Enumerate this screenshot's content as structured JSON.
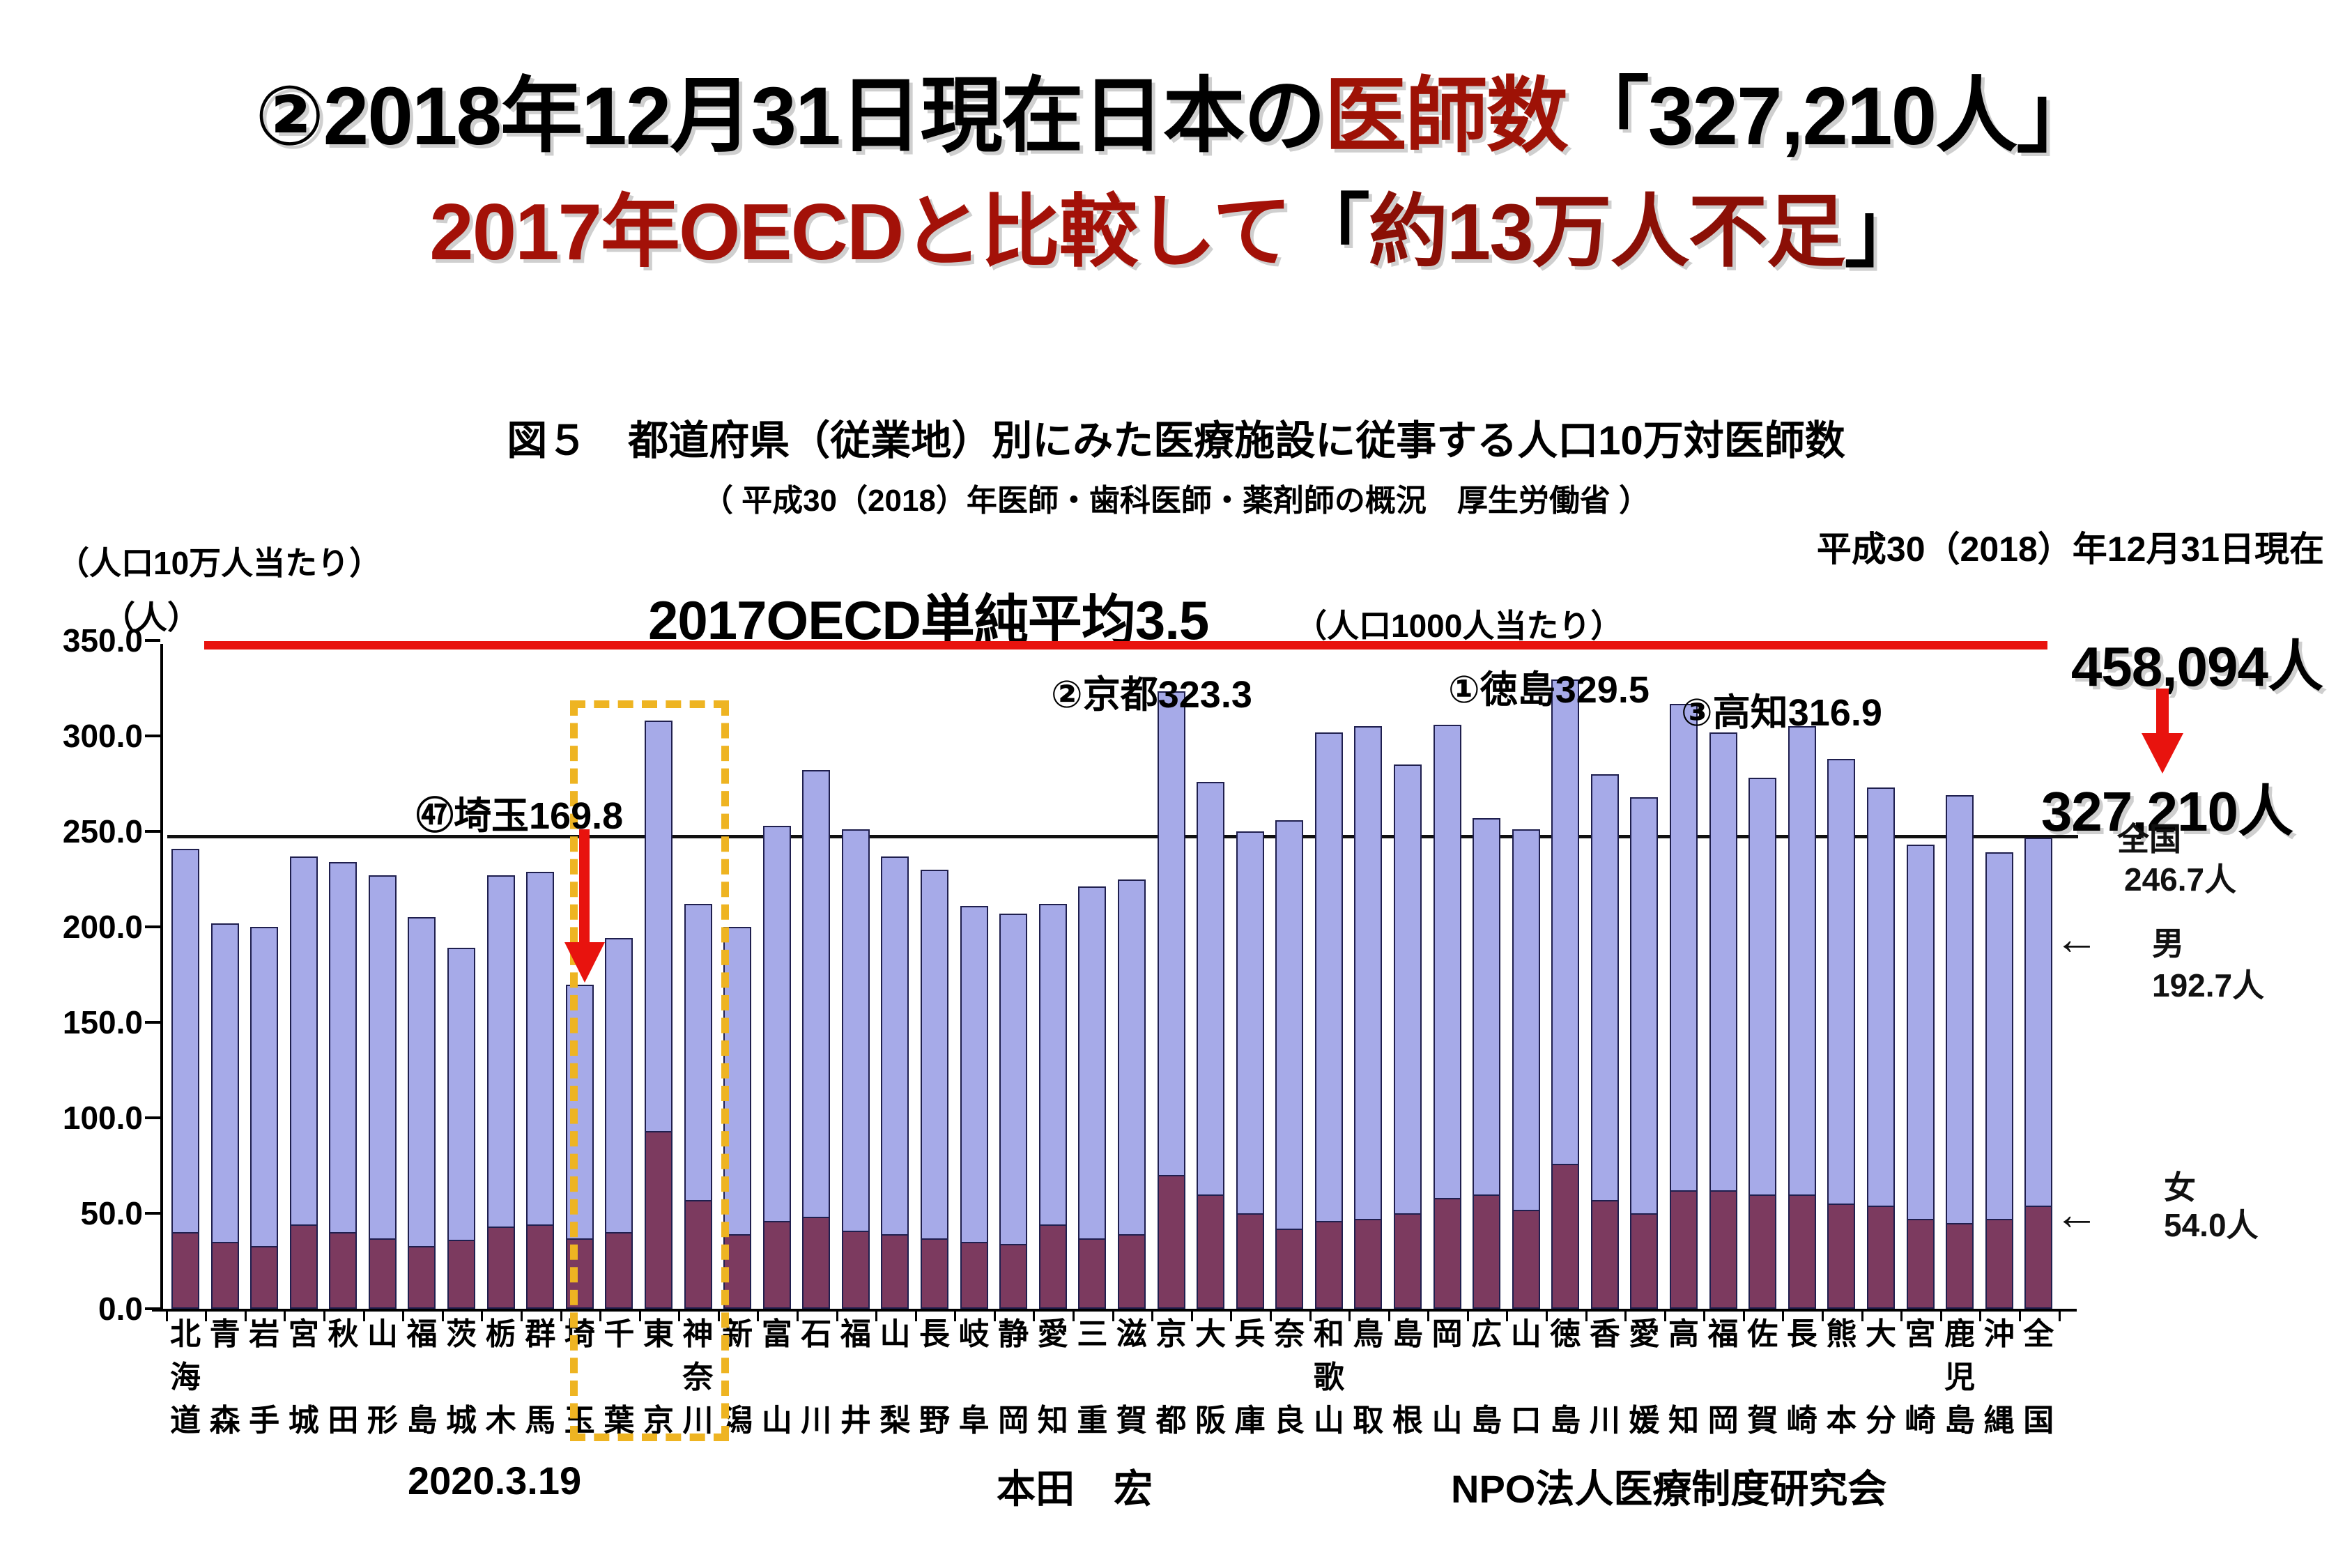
{
  "title": {
    "line1_prefix": "②2018年12月31日現在日本の",
    "line1_em": "医師数",
    "line1_suffix": "「327,210人」",
    "line2_main": "2017年OECDと比較して",
    "line2_open": "「",
    "line2_em": "約13万人不足",
    "line2_close": "」"
  },
  "figure": {
    "caption": "図５　都道府県（従業地）別にみた医療施設に従事する人口10万対医師数",
    "source": "（ 平成30（2018）年医師・歯科医師・薬剤師の概況　厚生労働省 ）",
    "date_note": "平成30（2018）年12月31日現在"
  },
  "axis": {
    "unit_top": "（人口10万人当たり）",
    "unit_person": "（人）",
    "y_ticks": [
      "350.0",
      "300.0",
      "250.0",
      "200.0",
      "150.0",
      "100.0",
      "50.0",
      "0.0"
    ]
  },
  "oecd": {
    "label": "2017OECD単純平均3.5",
    "unit": "（人口1000人当たり）",
    "line_color": "#e8130e"
  },
  "annotations": {
    "kyoto": "②京都323.3",
    "tokushima": "①徳島329.5",
    "kochi": "③高知316.9",
    "saitama": "㊼埼玉169.8",
    "total_2017": "458,094人",
    "total_2018": "327,210人",
    "zenkoku_label": "全国",
    "zenkoku_value": "246.7人",
    "male_label": "男",
    "male_value": "192.7人",
    "female_label": "女",
    "female_value": "54.0人",
    "left_arrow": "←"
  },
  "footer": {
    "date": "2020.3.19",
    "author": "本田　宏",
    "org": "NPO法人医療制度研究会"
  },
  "chart_data": {
    "type": "bar",
    "stacked": true,
    "title": "図５　都道府県（従業地）別にみた医療施設に従事する人口10万対医師数",
    "ylabel": "人口10万人当たり（人）",
    "ylim": [
      0,
      350
    ],
    "grid": false,
    "reference_lines": [
      {
        "label": "2017OECD単純平均3.5（人口350人/10万人相当）",
        "value": 350,
        "color": "#e8130e"
      },
      {
        "label": "全国 246.7人",
        "value": 246.7,
        "color": "#111111"
      }
    ],
    "series_legend": [
      "女（下段・濃色）",
      "男（上段・淡色）"
    ],
    "prefectures": [
      {
        "name": "北海道",
        "total": 241,
        "female": 40
      },
      {
        "name": "青森",
        "total": 202,
        "female": 35
      },
      {
        "name": "岩手",
        "total": 200,
        "female": 33
      },
      {
        "name": "宮城",
        "total": 237,
        "female": 44
      },
      {
        "name": "秋田",
        "total": 234,
        "female": 40
      },
      {
        "name": "山形",
        "total": 227,
        "female": 37
      },
      {
        "name": "福島",
        "total": 205,
        "female": 33
      },
      {
        "name": "茨城",
        "total": 189,
        "female": 36
      },
      {
        "name": "栃木",
        "total": 227,
        "female": 43
      },
      {
        "name": "群馬",
        "total": 229,
        "female": 44
      },
      {
        "name": "埼玉",
        "total": 169.8,
        "female": 37
      },
      {
        "name": "千葉",
        "total": 194,
        "female": 40
      },
      {
        "name": "東京",
        "total": 308,
        "female": 93
      },
      {
        "name": "神奈川",
        "total": 212,
        "female": 57
      },
      {
        "name": "新潟",
        "total": 200,
        "female": 39
      },
      {
        "name": "富山",
        "total": 253,
        "female": 46
      },
      {
        "name": "石川",
        "total": 282,
        "female": 48
      },
      {
        "name": "福井",
        "total": 251,
        "female": 41
      },
      {
        "name": "山梨",
        "total": 237,
        "female": 39
      },
      {
        "name": "長野",
        "total": 230,
        "female": 37
      },
      {
        "name": "岐阜",
        "total": 211,
        "female": 35
      },
      {
        "name": "静岡",
        "total": 207,
        "female": 34
      },
      {
        "name": "愛知",
        "total": 212,
        "female": 44
      },
      {
        "name": "三重",
        "total": 221,
        "female": 37
      },
      {
        "name": "滋賀",
        "total": 225,
        "female": 39
      },
      {
        "name": "京都",
        "total": 323.3,
        "female": 70
      },
      {
        "name": "大阪",
        "total": 276,
        "female": 60
      },
      {
        "name": "兵庫",
        "total": 250,
        "female": 50
      },
      {
        "name": "奈良",
        "total": 256,
        "female": 42
      },
      {
        "name": "和歌山",
        "total": 302,
        "female": 46
      },
      {
        "name": "鳥取",
        "total": 305,
        "female": 47
      },
      {
        "name": "島根",
        "total": 285,
        "female": 50
      },
      {
        "name": "岡山",
        "total": 306,
        "female": 58
      },
      {
        "name": "広島",
        "total": 257,
        "female": 60
      },
      {
        "name": "山口",
        "total": 251,
        "female": 52
      },
      {
        "name": "徳島",
        "total": 329.5,
        "female": 76
      },
      {
        "name": "香川",
        "total": 280,
        "female": 57
      },
      {
        "name": "愛媛",
        "total": 268,
        "female": 50
      },
      {
        "name": "高知",
        "total": 316.9,
        "female": 62
      },
      {
        "name": "福岡",
        "total": 302,
        "female": 62
      },
      {
        "name": "佐賀",
        "total": 278,
        "female": 60
      },
      {
        "name": "長崎",
        "total": 305,
        "female": 60
      },
      {
        "name": "熊本",
        "total": 288,
        "female": 55
      },
      {
        "name": "大分",
        "total": 273,
        "female": 54
      },
      {
        "name": "宮崎",
        "total": 243,
        "female": 47
      },
      {
        "name": "鹿児島",
        "total": 269,
        "female": 45
      },
      {
        "name": "沖縄",
        "total": 239,
        "female": 47
      },
      {
        "name": "全国",
        "total": 246.7,
        "female": 54
      }
    ]
  }
}
